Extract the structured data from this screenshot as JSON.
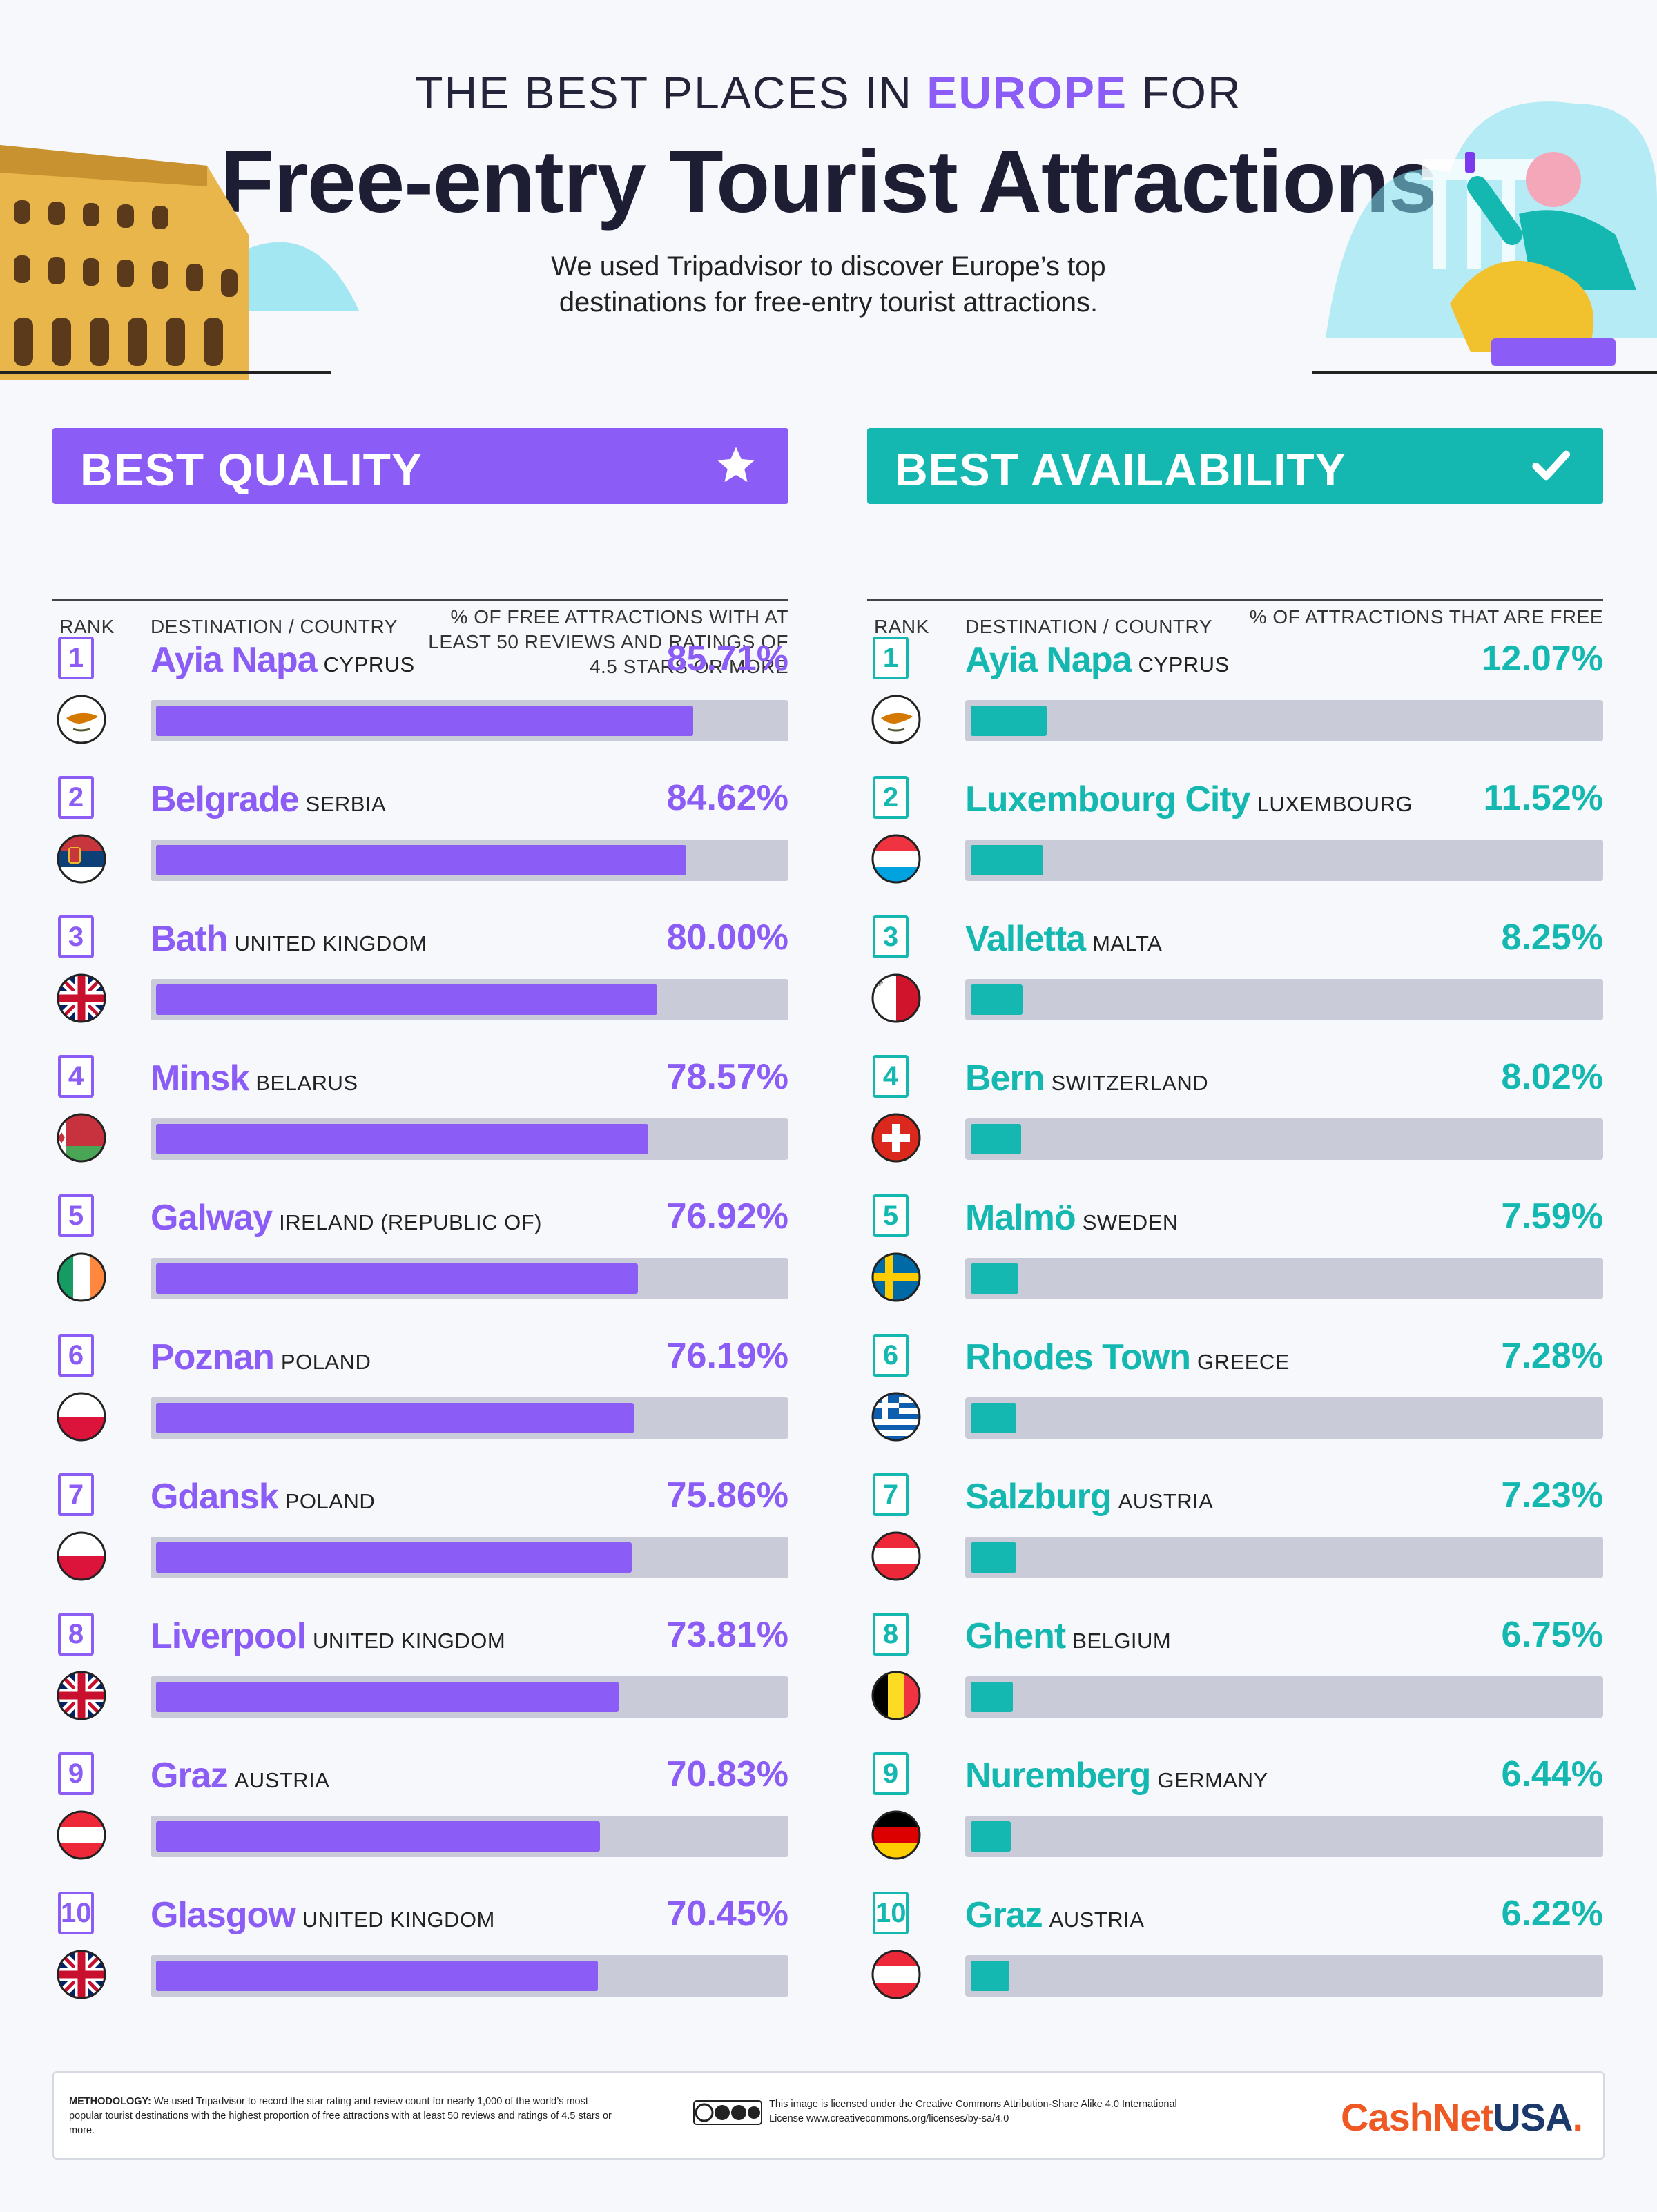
{
  "header": {
    "top_prefix": "THE BEST PLACES IN ",
    "top_highlight": "EUROPE",
    "top_suffix": " FOR",
    "title": "Free-entry Tourist Attractions",
    "subtitle": "We used Tripadvisor to discover Europe’s top destinations for free-entry tourist attractions."
  },
  "colors": {
    "purple": "#8b5cf6",
    "teal": "#14b8b1",
    "track": "#c9ccd8"
  },
  "chart_data": [
    {
      "type": "bar",
      "title": "BEST QUALITY",
      "icon": "star-icon",
      "columns": {
        "rank": "RANK",
        "destination": "DESTINATION / COUNTRY",
        "value": "% OF FREE ATTRACTIONS WITH AT LEAST 50 REVIEWS AND RATINGS OF 4.5 STARS OR MORE"
      },
      "ylim": [
        0,
        100
      ],
      "rows": [
        {
          "rank": "1",
          "city": "Ayia Napa",
          "country": "CYPRUS",
          "flag": "cyprus",
          "value": 85.71,
          "label": "85.71%"
        },
        {
          "rank": "2",
          "city": "Belgrade",
          "country": "SERBIA",
          "flag": "serbia",
          "value": 84.62,
          "label": "84.62%"
        },
        {
          "rank": "3",
          "city": "Bath",
          "country": "UNITED KINGDOM",
          "flag": "uk",
          "value": 80.0,
          "label": "80.00%"
        },
        {
          "rank": "4",
          "city": "Minsk",
          "country": "BELARUS",
          "flag": "belarus",
          "value": 78.57,
          "label": "78.57%"
        },
        {
          "rank": "5",
          "city": "Galway",
          "country": "IRELAND (REPUBLIC OF)",
          "flag": "ireland",
          "value": 76.92,
          "label": "76.92%"
        },
        {
          "rank": "6",
          "city": "Poznan",
          "country": "POLAND",
          "flag": "poland",
          "value": 76.19,
          "label": "76.19%"
        },
        {
          "rank": "7",
          "city": "Gdansk",
          "country": "POLAND",
          "flag": "poland",
          "value": 75.86,
          "label": "75.86%"
        },
        {
          "rank": "8",
          "city": "Liverpool",
          "country": "UNITED KINGDOM",
          "flag": "uk",
          "value": 73.81,
          "label": "73.81%"
        },
        {
          "rank": "9",
          "city": "Graz",
          "country": "AUSTRIA",
          "flag": "austria",
          "value": 70.83,
          "label": "70.83%"
        },
        {
          "rank": "10",
          "city": "Glasgow",
          "country": "UNITED KINGDOM",
          "flag": "uk",
          "value": 70.45,
          "label": "70.45%"
        }
      ]
    },
    {
      "type": "bar",
      "title": "BEST AVAILABILITY",
      "icon": "check-icon",
      "columns": {
        "rank": "RANK",
        "destination": "DESTINATION / COUNTRY",
        "value": "% OF ATTRACTIONS THAT ARE FREE"
      },
      "ylim": [
        0,
        100
      ],
      "rows": [
        {
          "rank": "1",
          "city": "Ayia Napa",
          "country": "CYPRUS",
          "flag": "cyprus",
          "value": 12.07,
          "label": "12.07%"
        },
        {
          "rank": "2",
          "city": "Luxembourg City",
          "country": "LUXEMBOURG",
          "flag": "luxembourg",
          "value": 11.52,
          "label": "11.52%"
        },
        {
          "rank": "3",
          "city": "Valletta",
          "country": "MALTA",
          "flag": "malta",
          "value": 8.25,
          "label": "8.25%"
        },
        {
          "rank": "4",
          "city": "Bern",
          "country": "SWITZERLAND",
          "flag": "switzerland",
          "value": 8.02,
          "label": "8.02%"
        },
        {
          "rank": "5",
          "city": "Malmö",
          "country": "SWEDEN",
          "flag": "sweden",
          "value": 7.59,
          "label": "7.59%"
        },
        {
          "rank": "6",
          "city": "Rhodes Town",
          "country": "GREECE",
          "flag": "greece",
          "value": 7.28,
          "label": "7.28%"
        },
        {
          "rank": "7",
          "city": "Salzburg",
          "country": "AUSTRIA",
          "flag": "austria",
          "value": 7.23,
          "label": "7.23%"
        },
        {
          "rank": "8",
          "city": "Ghent",
          "country": "BELGIUM",
          "flag": "belgium",
          "value": 6.75,
          "label": "6.75%"
        },
        {
          "rank": "9",
          "city": "Nuremberg",
          "country": "GERMANY",
          "flag": "germany",
          "value": 6.44,
          "label": "6.44%"
        },
        {
          "rank": "10",
          "city": "Graz",
          "country": "AUSTRIA",
          "flag": "austria",
          "value": 6.22,
          "label": "6.22%"
        }
      ]
    }
  ],
  "footer": {
    "method_label": "METHODOLOGY:",
    "method_text": " We used Tripadvisor to record the star rating and review count for nearly 1,000 of the world’s most popular tourist destinations with the highest proportion of free attractions with at least 50 reviews and ratings of 4.5 stars or more.",
    "license": "This image is licensed under the Creative Commons Attribution-Share Alike 4.0 International License www.creativecommons.org/licenses/by-sa/4.0",
    "cc_icon": "creative-commons-icon",
    "brand_part1": "CashNet",
    "brand_part2": "USA",
    "brand_dot": "."
  }
}
